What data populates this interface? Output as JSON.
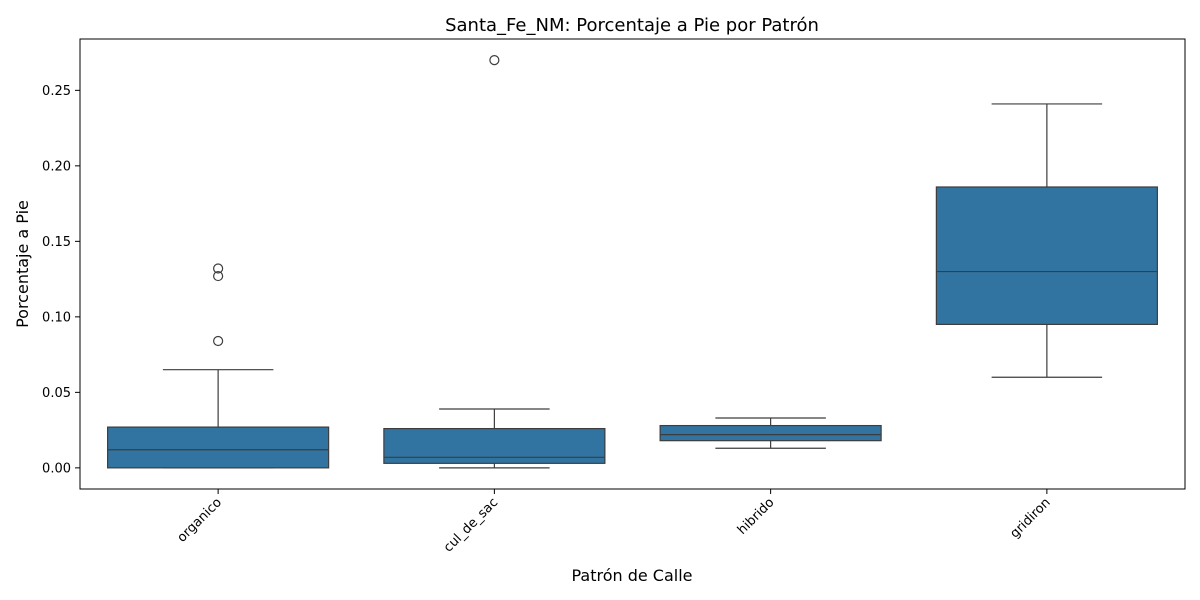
{
  "chart_data": {
    "type": "box",
    "title": "Santa_Fe_NM: Porcentaje a Pie por Patrón",
    "xlabel": "Patrón de Calle",
    "ylabel": "Porcentaje a Pie",
    "ylim": [
      -0.014,
      0.284
    ],
    "yticks": [
      0.0,
      0.05,
      0.1,
      0.15,
      0.2,
      0.25
    ],
    "ytick_labels": [
      "0.00",
      "0.05",
      "0.10",
      "0.15",
      "0.20",
      "0.25"
    ],
    "categories": [
      "organico",
      "cul_de_sac",
      "hibrido",
      "gridiron"
    ],
    "boxes": [
      {
        "category": "organico",
        "whisker_low": 0.0,
        "q1": 0.0,
        "median": 0.012,
        "q3": 0.027,
        "whisker_high": 0.065,
        "outliers": [
          0.084,
          0.127,
          0.132
        ]
      },
      {
        "category": "cul_de_sac",
        "whisker_low": 0.0,
        "q1": 0.003,
        "median": 0.007,
        "q3": 0.026,
        "whisker_high": 0.039,
        "outliers": [
          0.27
        ]
      },
      {
        "category": "hibrido",
        "whisker_low": 0.013,
        "q1": 0.018,
        "median": 0.022,
        "q3": 0.028,
        "whisker_high": 0.033,
        "outliers": []
      },
      {
        "category": "gridiron",
        "whisker_low": 0.06,
        "q1": 0.095,
        "median": 0.13,
        "q3": 0.186,
        "whisker_high": 0.241,
        "outliers": []
      }
    ],
    "box_color": "#3274a1",
    "line_color": "#3d3d3d",
    "grid": false,
    "legend": "none"
  }
}
